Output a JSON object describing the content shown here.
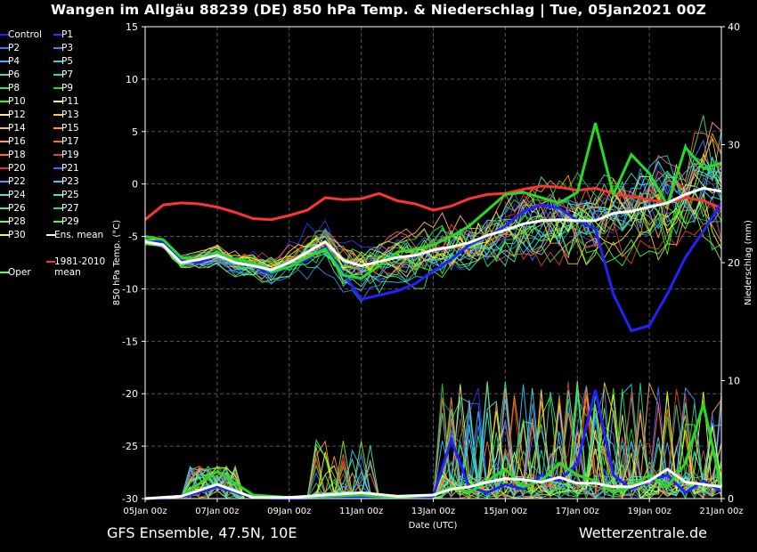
{
  "header": {
    "title": "Wangen im Allgäu 88239 (DE)  850 hPa Temp. & Niederschlag | Tue, 05Jan2021 00Z"
  },
  "footer": {
    "left": "GFS Ensemble, 47.5N, 10E",
    "right": "Wetterzentrale.de"
  },
  "legend": {
    "items": [
      {
        "label": "Control",
        "color": "#2222ff"
      },
      {
        "label": "P1",
        "color": "#3333ee"
      },
      {
        "label": "P2",
        "color": "#3b7bff"
      },
      {
        "label": "P3",
        "color": "#2d8cff"
      },
      {
        "label": "P4",
        "color": "#3fb6ff"
      },
      {
        "label": "P5",
        "color": "#2fd0e0"
      },
      {
        "label": "P6",
        "color": "#3fe0c0"
      },
      {
        "label": "P7",
        "color": "#22e0a0"
      },
      {
        "label": "P8",
        "color": "#3ce070"
      },
      {
        "label": "P9",
        "color": "#22dd22"
      },
      {
        "label": "P10",
        "color": "#33ff00"
      },
      {
        "label": "P11",
        "color": "#ffff33"
      },
      {
        "label": "P12",
        "color": "#ffee77"
      },
      {
        "label": "P13",
        "color": "#ffcc33"
      },
      {
        "label": "P14",
        "color": "#ffbb55"
      },
      {
        "label": "P15",
        "color": "#ff9922"
      },
      {
        "label": "P16",
        "color": "#ff9966"
      },
      {
        "label": "P17",
        "color": "#ff6633"
      },
      {
        "label": "P18",
        "color": "#ff6644"
      },
      {
        "label": "P19",
        "color": "#dd4422"
      },
      {
        "label": "P20",
        "color": "#dd3333"
      },
      {
        "label": "P21",
        "color": "#4466ff"
      },
      {
        "label": "P22",
        "color": "#5599ff"
      },
      {
        "label": "P23",
        "color": "#33ccff"
      },
      {
        "label": "P24",
        "color": "#55dddd"
      },
      {
        "label": "P25",
        "color": "#33eebb"
      },
      {
        "label": "P26",
        "color": "#44ee88"
      },
      {
        "label": "P27",
        "color": "#33dd55"
      },
      {
        "label": "P28",
        "color": "#88ee44"
      },
      {
        "label": "P29",
        "color": "#44ff33"
      },
      {
        "label": "P30",
        "color": "#ffff00"
      },
      {
        "label": "Ens. mean",
        "color": "#ffffff"
      },
      {
        "label": "1981-2010 mean",
        "color": "#ff3333"
      },
      {
        "label": "Oper",
        "color": "#55ff55"
      }
    ]
  },
  "chart_data": {
    "type": "line",
    "xlabel": "Date (UTC)",
    "ylabel": "850 hPa Temp. (°C)",
    "y2label": "Niederschlag (mm)",
    "xlim": [
      0,
      16
    ],
    "ylim": [
      -30,
      15
    ],
    "y2lim": [
      0,
      40
    ],
    "x_ticks": [
      {
        "x": 0,
        "label": "05Jan 00z"
      },
      {
        "x": 2,
        "label": "07Jan 00z"
      },
      {
        "x": 4,
        "label": "09Jan 00z"
      },
      {
        "x": 6,
        "label": "11Jan 00z"
      },
      {
        "x": 8,
        "label": "13Jan 00z"
      },
      {
        "x": 10,
        "label": "15Jan 00z"
      },
      {
        "x": 12,
        "label": "17Jan 00z"
      },
      {
        "x": 14,
        "label": "19Jan 00z"
      },
      {
        "x": 16,
        "label": "21Jan 00z"
      }
    ],
    "y_ticks": [
      15,
      10,
      5,
      0,
      -5,
      -10,
      -15,
      -20,
      -25,
      -30
    ],
    "y2_ticks": [
      0,
      10,
      20,
      30,
      40
    ],
    "grid": true,
    "legend_position": "left",
    "temperature_series": {
      "ens_mean": {
        "x": [
          0,
          0.5,
          1,
          1.5,
          2,
          2.5,
          3,
          3.5,
          4,
          4.5,
          5,
          5.5,
          6,
          6.5,
          7,
          7.5,
          8,
          8.5,
          9,
          9.5,
          10,
          10.5,
          11,
          11.5,
          12,
          12.5,
          13,
          13.5,
          14,
          14.5,
          15,
          15.5,
          16
        ],
        "y": [
          -5.5,
          -5.8,
          -7.5,
          -7.2,
          -6.8,
          -7.5,
          -7.8,
          -8.2,
          -7.5,
          -6.5,
          -5.5,
          -7.3,
          -7.8,
          -7.4,
          -7.0,
          -6.8,
          -6.3,
          -6.0,
          -5.6,
          -4.9,
          -4.4,
          -3.8,
          -3.5,
          -3.4,
          -3.5,
          -3.5,
          -2.8,
          -2.6,
          -2.2,
          -1.8,
          -1.0,
          -0.4,
          -0.7
        ]
      },
      "climate_mean": {
        "x": [
          0,
          0.5,
          1,
          1.5,
          2,
          2.5,
          3,
          3.5,
          4,
          4.5,
          5,
          5.5,
          6,
          6.5,
          7,
          7.5,
          8,
          8.5,
          9,
          9.5,
          10,
          10.5,
          11,
          11.5,
          12,
          12.5,
          13,
          13.5,
          14,
          14.5,
          15,
          15.5,
          16
        ],
        "y": [
          -3.4,
          -2.0,
          -1.8,
          -1.9,
          -2.2,
          -2.7,
          -3.3,
          -3.4,
          -3.0,
          -2.5,
          -1.3,
          -1.5,
          -1.4,
          -0.9,
          -1.6,
          -1.9,
          -2.5,
          -2.1,
          -1.4,
          -1.0,
          -0.9,
          -0.5,
          -0.2,
          -0.3,
          -0.6,
          -0.4,
          -0.9,
          -1.2,
          -1.5,
          -1.8,
          -1.3,
          -1.6,
          -2.3
        ]
      },
      "control": {
        "x": [
          0,
          0.5,
          1,
          1.5,
          2,
          2.5,
          3,
          3.5,
          4,
          4.5,
          5,
          5.5,
          6,
          6.5,
          7,
          7.5,
          8,
          8.5,
          9,
          9.5,
          10,
          10.5,
          11,
          11.5,
          12,
          12.5,
          13,
          13.5,
          14,
          14.5,
          15,
          15.5,
          16
        ],
        "y": [
          -5.5,
          -5.5,
          -7.3,
          -7.5,
          -6.8,
          -7.5,
          -7.8,
          -8.6,
          -7.8,
          -7.2,
          -6.0,
          -8.5,
          -11.0,
          -10.6,
          -10.2,
          -9.5,
          -8.3,
          -7.2,
          -5.8,
          -5.0,
          -4.0,
          -2.6,
          -2.0,
          -2.3,
          -3.5,
          -4.3,
          -10.5,
          -14.0,
          -13.5,
          -10.5,
          -7.0,
          -4.5,
          -1.8
        ]
      },
      "oper": {
        "x": [
          0,
          0.5,
          1,
          1.5,
          2,
          2.5,
          3,
          3.5,
          4,
          4.5,
          5,
          5.5,
          6,
          6.5,
          7,
          7.5,
          8,
          8.5,
          9,
          9.5,
          10,
          10.5,
          11,
          11.5,
          12,
          12.5,
          13,
          13.5,
          14,
          14.5,
          15,
          15.5,
          16
        ],
        "y": [
          -5.0,
          -5.3,
          -7.0,
          -7.2,
          -6.6,
          -7.2,
          -7.5,
          -8.4,
          -7.9,
          -7.0,
          -6.2,
          -8.7,
          -9.0,
          -7.8,
          -6.5,
          -6.2,
          -5.8,
          -5.0,
          -4.0,
          -2.5,
          -1.0,
          -0.8,
          -1.3,
          -1.8,
          -0.8,
          5.8,
          -1.0,
          2.8,
          1.0,
          -2.0,
          3.5,
          1.5,
          2.0
        ]
      }
    },
    "precipitation_series": {
      "ens_mean": {
        "x": [
          0,
          1,
          2,
          3,
          4,
          5,
          6,
          7,
          8,
          8.5,
          9,
          9.5,
          10,
          10.5,
          11,
          11.5,
          12,
          12.5,
          13,
          13.5,
          14,
          14.5,
          15,
          15.5,
          16
        ],
        "y": [
          0,
          0.2,
          1.2,
          0.1,
          0.1,
          0.3,
          0.5,
          0.2,
          0.3,
          0.8,
          1.0,
          1.4,
          1.7,
          1.6,
          1.4,
          1.8,
          1.3,
          1.3,
          1.0,
          1.0,
          1.5,
          2.5,
          1.4,
          1.2,
          1.0
        ]
      },
      "control": {
        "x": [
          0,
          1,
          2,
          3,
          4,
          5,
          6,
          7,
          8,
          8.5,
          9,
          9.5,
          10,
          10.5,
          11,
          11.5,
          12,
          12.5,
          13,
          13.5,
          14,
          14.5,
          15,
          15.5,
          16
        ],
        "y": [
          0,
          0.1,
          1.0,
          0.1,
          0,
          0.1,
          0.1,
          0.1,
          0.2,
          5.0,
          1.0,
          0.5,
          1.2,
          0.8,
          2.0,
          1.5,
          3.0,
          9.2,
          2.0,
          0.8,
          1.5,
          2.0,
          0.5,
          1.5,
          0.6
        ]
      },
      "oper": {
        "x": [
          0,
          1,
          2,
          3,
          4,
          5,
          6,
          7,
          8,
          8.5,
          9,
          9.5,
          10,
          10.5,
          11,
          11.5,
          12,
          12.5,
          13,
          13.5,
          14,
          14.5,
          15,
          15.5,
          16
        ],
        "y": [
          0,
          0.2,
          2.3,
          0.3,
          0.1,
          0.2,
          0.3,
          0.1,
          0.3,
          1.0,
          0.5,
          1.5,
          2.5,
          1.0,
          1.5,
          3.0,
          2.0,
          1.5,
          0.5,
          1.0,
          2.0,
          1.0,
          3.0,
          8.0,
          1.0
        ]
      }
    }
  }
}
